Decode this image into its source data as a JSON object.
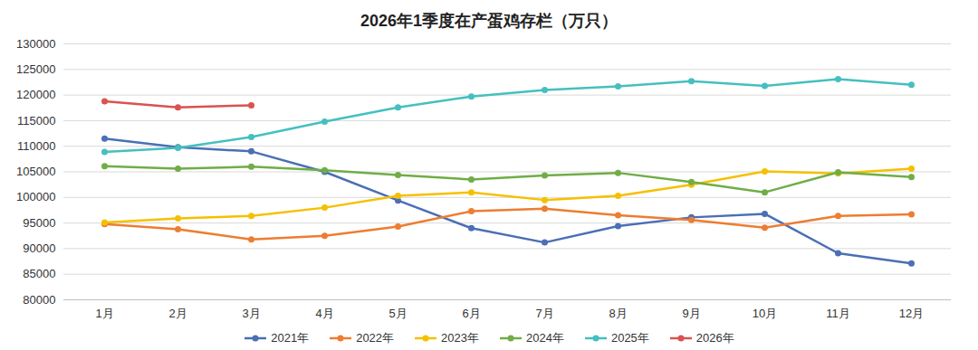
{
  "chart_data": {
    "type": "line",
    "title": "2026年1季度在产蛋鸡存栏（万只）",
    "categories": [
      "1月",
      "2月",
      "3月",
      "4月",
      "5月",
      "6月",
      "7月",
      "8月",
      "9月",
      "10月",
      "11月",
      "12月"
    ],
    "series": [
      {
        "name": "2021年",
        "color": "#4a6fb5",
        "values": [
          111500,
          109800,
          109000,
          105000,
          99400,
          94000,
          91200,
          94400,
          96100,
          96800,
          89100,
          87100
        ]
      },
      {
        "name": "2022年",
        "color": "#ed7d31",
        "values": [
          94800,
          93800,
          91800,
          92500,
          94300,
          97300,
          97800,
          96500,
          95600,
          94100,
          96400,
          96700
        ]
      },
      {
        "name": "2023年",
        "color": "#f5c000",
        "values": [
          95100,
          95900,
          96400,
          98000,
          100300,
          101000,
          99500,
          100300,
          102500,
          105100,
          104700,
          105600
        ]
      },
      {
        "name": "2024年",
        "color": "#70ad47",
        "values": [
          106100,
          105600,
          106000,
          105300,
          104400,
          103500,
          104300,
          104800,
          103000,
          101000,
          104900,
          104000
        ]
      },
      {
        "name": "2025年",
        "color": "#45bfbf",
        "values": [
          108900,
          109700,
          111800,
          114800,
          117600,
          119700,
          121000,
          121700,
          122700,
          121800,
          123100,
          122000
        ]
      },
      {
        "name": "2026年",
        "color": "#d9534f",
        "values": [
          118800,
          117600,
          118000,
          null,
          null,
          null,
          null,
          null,
          null,
          null,
          null,
          null
        ]
      }
    ],
    "ylim": [
      80000,
      130000
    ],
    "yticks": [
      80000,
      85000,
      90000,
      95000,
      100000,
      105000,
      110000,
      115000,
      120000,
      125000,
      130000
    ],
    "grid": true,
    "legend": "bottom",
    "marker": "circle"
  }
}
